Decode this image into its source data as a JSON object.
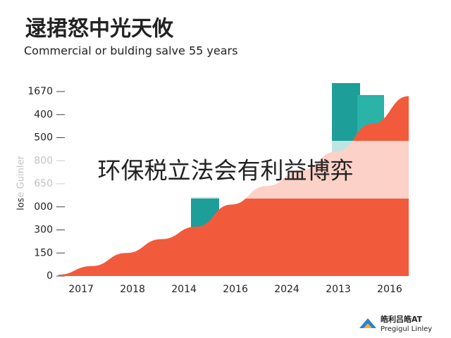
{
  "chart_data": {
    "type": "area",
    "title": "逯捃怒中光天攸",
    "subtitle": "Commercial or bulding salve 55 years",
    "y_label": "lose Guinler",
    "overlay_text": "环保税立法会有利益博弈",
    "logo_title": "皓利吕皓AT",
    "logo_subtitle": "Pregigul Linley",
    "color": "#f25a3c",
    "x": [
      -0.44,
      0.2,
      0.88,
      1.56,
      2.24,
      2.92,
      3.6,
      4.29,
      4.97,
      5.66,
      6.37
    ],
    "values": [
      0.06,
      0.43,
      1.0,
      1.6,
      2.14,
      3.1,
      3.9,
      4.6,
      5.4,
      6.6,
      7.8
    ],
    "xlim": [
      -0.44,
      6.37
    ],
    "xticks": [
      {
        "value": 0,
        "label": "2017"
      },
      {
        "value": 1,
        "label": "2018"
      },
      {
        "value": 2,
        "label": "2014"
      },
      {
        "value": 3,
        "label": "2016"
      },
      {
        "value": 4,
        "label": "2024"
      },
      {
        "value": 5,
        "label": "2013"
      },
      {
        "value": 6,
        "label": "2016"
      }
    ],
    "ylim": [
      0,
      8.4
    ],
    "yticks": [
      {
        "value": 0,
        "label": "0"
      },
      {
        "value": 1,
        "label": "150"
      },
      {
        "value": 2,
        "label": "300"
      },
      {
        "value": 3,
        "label": "000"
      },
      {
        "value": 4,
        "label": "650"
      },
      {
        "value": 5,
        "label": "800"
      },
      {
        "value": 6,
        "label": "500"
      },
      {
        "value": 7,
        "label": "400"
      },
      {
        "value": 8,
        "label": "1670"
      }
    ]
  }
}
